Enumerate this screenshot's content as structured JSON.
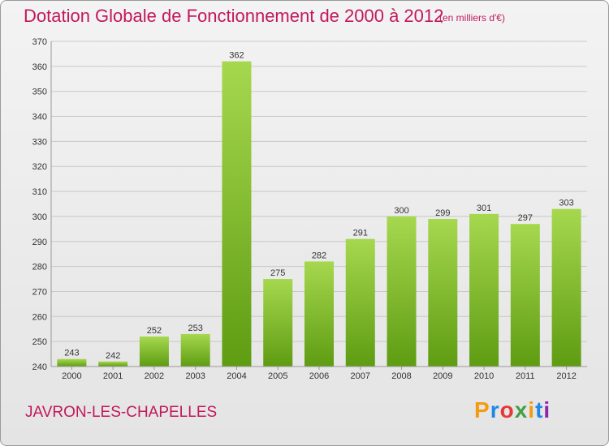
{
  "header": {
    "title": "Dotation Globale de Fonctionnement de 2000 à 2012",
    "subtitle": "(en milliers d'€)"
  },
  "footer": {
    "commune": "JAVRON-LES-CHAPELLES",
    "logo_text": "Proxiti",
    "logo_colors": [
      "#f39c12",
      "#1e88e5",
      "#e53935",
      "#43a047",
      "#f39c12",
      "#1e88e5",
      "#8e24aa"
    ]
  },
  "colors": {
    "bar_light": "#a6d84e",
    "bar_dark": "#5e9c12",
    "grid": "#c8c8c8",
    "title": "#c2185b"
  },
  "chart_data": {
    "type": "bar",
    "categories": [
      "2000",
      "2001",
      "2002",
      "2003",
      "2004",
      "2005",
      "2006",
      "2007",
      "2008",
      "2009",
      "2010",
      "2011",
      "2012"
    ],
    "values": [
      243,
      242,
      252,
      253,
      362,
      275,
      282,
      291,
      300,
      299,
      301,
      297,
      303
    ],
    "ylim": [
      240,
      370
    ],
    "yticks": [
      240,
      250,
      260,
      270,
      280,
      290,
      300,
      310,
      320,
      330,
      340,
      350,
      360,
      370
    ],
    "grid": true
  }
}
